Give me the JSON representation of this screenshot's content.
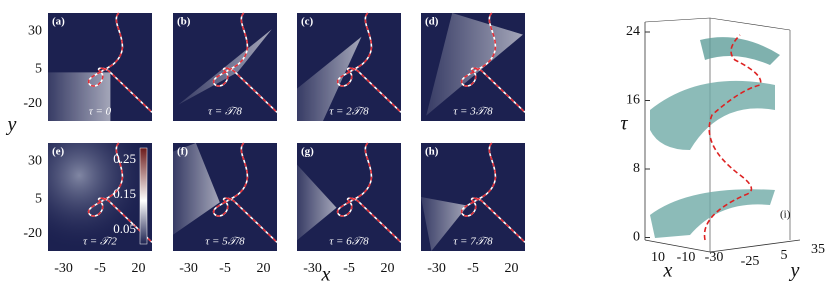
{
  "panels": [
    {
      "label": "(a)",
      "tau": "τ = 0"
    },
    {
      "label": "(b)",
      "tau": "τ = 𝒯/8"
    },
    {
      "label": "(c)",
      "tau": "τ = 2𝒯/8"
    },
    {
      "label": "(d)",
      "tau": "τ = 3𝒯/8"
    },
    {
      "label": "(e)",
      "tau": "τ = 𝒯/2"
    },
    {
      "label": "(f)",
      "tau": "τ = 5𝒯/8"
    },
    {
      "label": "(g)",
      "tau": "τ = 6𝒯/8"
    },
    {
      "label": "(h)",
      "tau": "τ = 7𝒯/8"
    }
  ],
  "x_axis": {
    "label": "x",
    "ticks": [
      "-30",
      "-5",
      "20"
    ]
  },
  "y_axis": {
    "label": "y",
    "ticks": [
      "30",
      "5",
      "-20"
    ]
  },
  "colorbar": {
    "ticks": [
      "0.25",
      "0.15",
      "0.05"
    ]
  },
  "panel_3d": {
    "label": "(i)",
    "tau_label": "τ",
    "tau_ticks": [
      "24",
      "16",
      "8",
      "0"
    ],
    "x_label": "x",
    "x_ticks": [
      "10",
      "-10",
      "-30"
    ],
    "y_label": "y",
    "y_ticks": [
      "-25",
      "5",
      "35"
    ]
  }
}
